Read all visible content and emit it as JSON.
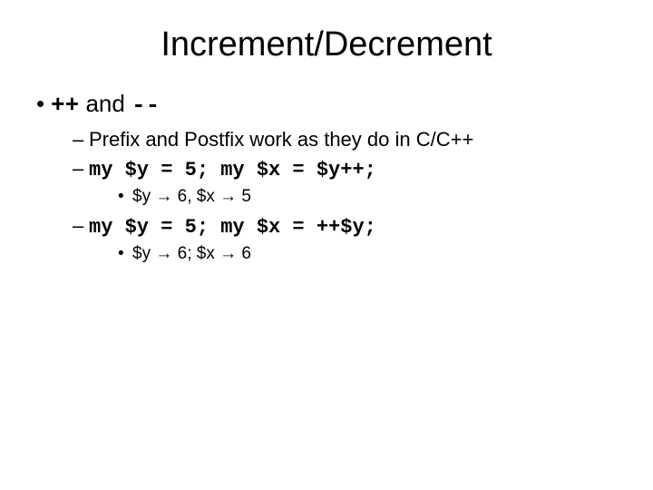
{
  "slide": {
    "title": "Increment/Decrement",
    "bullet1": {
      "prefix": "++",
      "mid": " and ",
      "suffix": "--"
    },
    "sub1": "Prefix and Postfix work as they do in C/C++",
    "code1": "my $y = 5;   my $x = $y++;",
    "result1_a": "$y ",
    "result1_b": " 6, $x ",
    "result1_c": " 5",
    "code2": "my $y = 5;   my $x = ++$y;",
    "result2_a": "$y ",
    "result2_b": " 6; $x ",
    "result2_c": " 6",
    "arrow": "→"
  }
}
